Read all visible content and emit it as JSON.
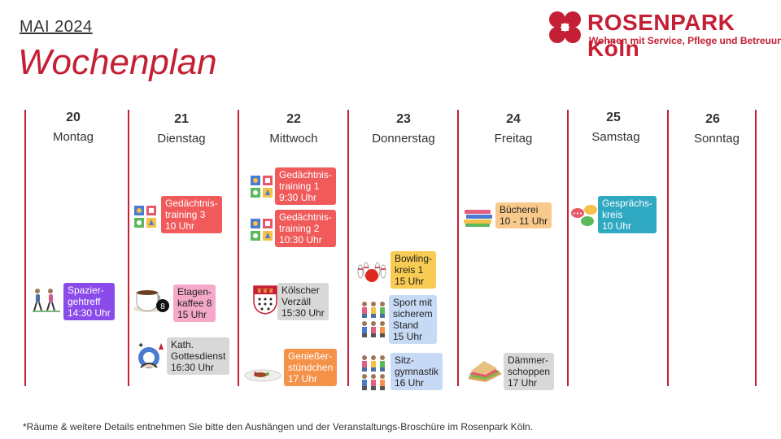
{
  "header": {
    "month": "MAI 2024",
    "title": "Wochenplan",
    "logo_name": "ROSENPARK Köln",
    "logo_sub": "Wohnen mit Service, Pflege und Betreuung"
  },
  "days": [
    {
      "num": "20",
      "name": "Montag"
    },
    {
      "num": "21",
      "name": "Dienstag"
    },
    {
      "num": "22",
      "name": "Mittwoch"
    },
    {
      "num": "23",
      "name": "Donnerstag"
    },
    {
      "num": "24",
      "name": "Freitag"
    },
    {
      "num": "25",
      "name": "Samstag"
    },
    {
      "num": "26",
      "name": "Sonntag"
    }
  ],
  "events": {
    "mo_spaziergehtreff": [
      "Spazier-",
      "gehtreff",
      "14:30 Uhr"
    ],
    "di_gedaechtnis3": [
      "Gedächtnis-",
      "training 3",
      "10 Uhr"
    ],
    "di_etagenkaffee": [
      "Etagen-",
      "kaffee 8",
      "15 Uhr"
    ],
    "di_gottesdienst": [
      "Kath.",
      "Gottesdienst",
      "16:30 Uhr"
    ],
    "mi_gedaechtnis1": [
      "Gedächtnis-",
      "training 1",
      "9:30 Uhr"
    ],
    "mi_gedaechtnis2": [
      "Gedächtnis-",
      "training 2",
      "10:30 Uhr"
    ],
    "mi_koelscher": [
      "Kölscher",
      "Verzäll",
      "15:30 Uhr"
    ],
    "mi_geniesser": [
      "Genießer-",
      "stündchen",
      "17 Uhr"
    ],
    "do_bowling": [
      "Bowling-",
      "kreis 1",
      "15 Uhr"
    ],
    "do_sport": [
      "Sport mit",
      "sicherem",
      "Stand",
      "15 Uhr"
    ],
    "do_sitz": [
      "Sitz-",
      "gymnastik",
      "16 Uhr"
    ],
    "fr_buecherei": [
      "Bücherei",
      "10 - 11 Uhr"
    ],
    "fr_daemmer": [
      "Dämmer-",
      "schoppen",
      "17 Uhr"
    ],
    "sa_gespraech": [
      "Gesprächs-",
      "kreis",
      "10 Uhr"
    ]
  },
  "icons": {
    "puzzle": "puzzle-blocks-icon",
    "coffee": "coffee-cup-icon",
    "prayer": "prayer-icon",
    "walkers": "walking-people-icon",
    "cologne": "cologne-coat-of-arms-icon",
    "dish": "food-plate-icon",
    "bowling": "bowling-icon",
    "exercise": "exercise-people-icon",
    "books": "books-icon",
    "sandwich": "sandwich-icon",
    "chat": "chat-bubbles-icon"
  },
  "footer": "*Räume & weitere Details entnehmen Sie bitte den Aushängen und der Veranstaltungs-Broschüre im Rosenpark Köln.",
  "colors": {
    "brand_red": "#c41f34",
    "red": "#f05a5a",
    "pink": "#f6a8c8",
    "purple": "#8a4bea",
    "grey": "#d8d8d8",
    "orange": "#f5924a",
    "yellow": "#f8cc52",
    "blue": "#c7daf5",
    "teal": "#2fa8c2",
    "peach": "#f8c98a"
  }
}
